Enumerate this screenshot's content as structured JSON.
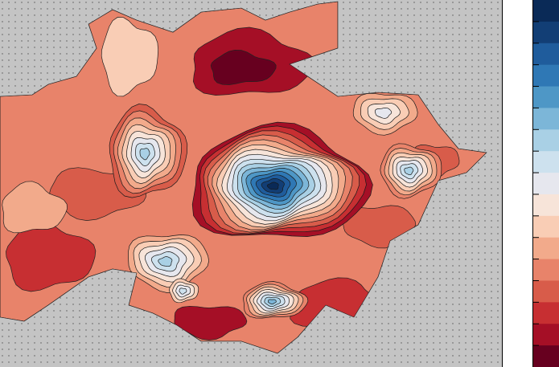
{
  "chart_data": {
    "type": "heatmap",
    "title": "",
    "xlabel": "",
    "ylabel": "",
    "grid": "dotted",
    "missing_color": "#c4c4c4",
    "colormap": [
      "#67001f",
      "#a50f26",
      "#c72f32",
      "#d85c4a",
      "#e8836a",
      "#f2aa8b",
      "#f9cdb5",
      "#f7e4d9",
      "#e6e7ee",
      "#cde1ee",
      "#a9d0e5",
      "#7cb6d8",
      "#4e97c6",
      "#2f78b5",
      "#1f5c9c",
      "#123e75",
      "#0a2a57"
    ],
    "colorbar_levels": 17,
    "colorbar_ticks": [],
    "cells": [
      {
        "label": "central-minimum",
        "level": 16,
        "rings": 16
      },
      {
        "label": "west-minimum",
        "level": 10,
        "rings": 8
      },
      {
        "label": "east-minimum",
        "level": 10,
        "rings": 7
      },
      {
        "label": "northeast-minimum",
        "level": 8,
        "rings": 4
      },
      {
        "label": "south-minimum",
        "level": 10,
        "rings": 6
      },
      {
        "label": "southeast-minimum",
        "level": 11,
        "rings": 8
      },
      {
        "label": "south-center-minimum",
        "level": 9,
        "rings": 4
      }
    ]
  }
}
